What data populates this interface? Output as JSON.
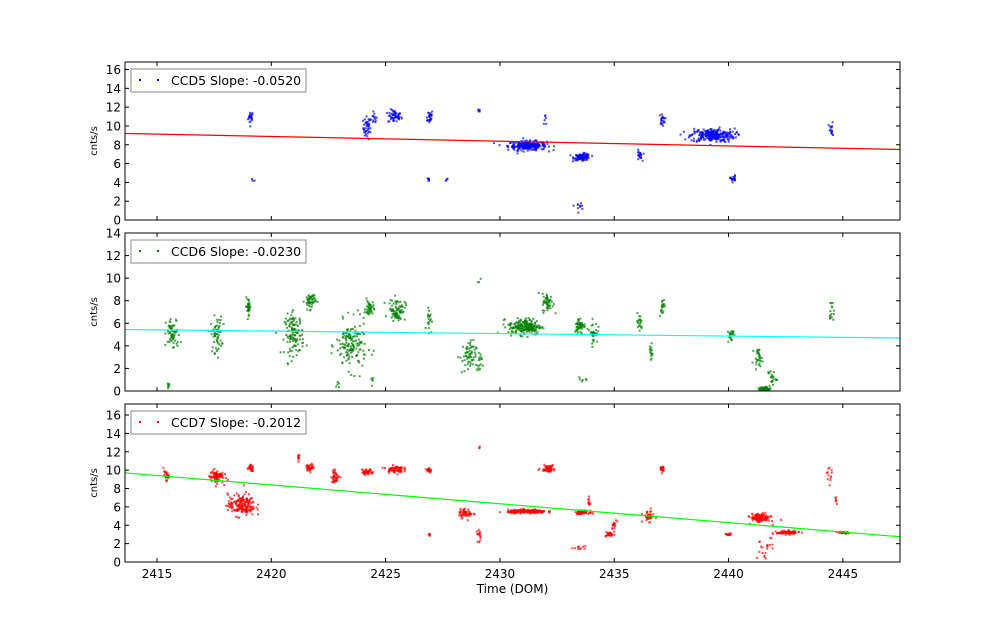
{
  "chart_data": {
    "type": "scatter",
    "xlabel": "Time (DOM)",
    "xlim": [
      2413.6,
      2447.5
    ],
    "xticks": [
      2415,
      2420,
      2425,
      2430,
      2435,
      2440,
      2445
    ],
    "cluster_format": [
      "x_center",
      "y_center",
      "x_spread",
      "y_spread",
      "count"
    ],
    "panels": [
      {
        "name": "CCD5",
        "legend": "CCD5 Slope: -0.0520",
        "ylabel": "cnts/s",
        "ylim": [
          0,
          16.8
        ],
        "yticks": [
          0,
          2,
          4,
          6,
          8,
          10,
          12,
          14,
          16
        ],
        "point_color": "#0000ff",
        "fit_color": "#ff0000",
        "fit": [
          9.2,
          7.5
        ],
        "clusters": [
          [
            2419.1,
            10.9,
            0.1,
            0.6,
            20
          ],
          [
            2419.2,
            4.4,
            0.1,
            0.2,
            3
          ],
          [
            2424.2,
            9.8,
            0.15,
            1,
            40
          ],
          [
            2424.5,
            10.8,
            0.1,
            0.5,
            12
          ],
          [
            2425.4,
            11,
            0.25,
            0.6,
            50
          ],
          [
            2426.9,
            11,
            0.15,
            0.6,
            25
          ],
          [
            2426.9,
            4.3,
            0.1,
            0.2,
            6
          ],
          [
            2427.7,
            4.3,
            0.05,
            0.2,
            4
          ],
          [
            2429.1,
            11.7,
            0.05,
            0.2,
            5
          ],
          [
            2431.2,
            7.9,
            0.7,
            0.4,
            250
          ],
          [
            2432.0,
            10.5,
            0.05,
            0.5,
            6
          ],
          [
            2433.6,
            6.7,
            0.3,
            0.3,
            100
          ],
          [
            2433.5,
            1.5,
            0.2,
            0.3,
            10
          ],
          [
            2436.1,
            6.8,
            0.1,
            0.5,
            20
          ],
          [
            2437.1,
            10.7,
            0.1,
            0.5,
            20
          ],
          [
            2439.3,
            9,
            0.8,
            0.6,
            250
          ],
          [
            2440.2,
            4.4,
            0.1,
            0.3,
            20
          ],
          [
            2444.5,
            9.5,
            0.1,
            0.7,
            15
          ]
        ]
      },
      {
        "name": "CCD6",
        "legend": "CCD6 Slope: -0.0230",
        "ylabel": "cnts/s",
        "ylim": [
          0,
          14
        ],
        "yticks": [
          0,
          2,
          4,
          6,
          8,
          10,
          12,
          14
        ],
        "point_color": "#008000",
        "fit_color": "#00ffff",
        "fit": [
          5.45,
          4.7
        ],
        "clusters": [
          [
            2415.5,
            0.5,
            0.05,
            0.3,
            6
          ],
          [
            2415.7,
            5,
            0.25,
            1.2,
            60
          ],
          [
            2417.6,
            5,
            0.2,
            1.3,
            60
          ],
          [
            2419.0,
            7.5,
            0.1,
            0.6,
            30
          ],
          [
            2421.0,
            5,
            0.35,
            1.5,
            120
          ],
          [
            2421.7,
            8,
            0.2,
            0.6,
            50
          ],
          [
            2422.9,
            0.6,
            0.05,
            0.3,
            5
          ],
          [
            2423.5,
            4,
            0.55,
            1.8,
            150
          ],
          [
            2424.3,
            7.3,
            0.15,
            0.6,
            40
          ],
          [
            2424.4,
            1,
            0.05,
            0.4,
            5
          ],
          [
            2425.5,
            7.2,
            0.3,
            0.8,
            80
          ],
          [
            2426.9,
            6.5,
            0.1,
            1,
            20
          ],
          [
            2428.6,
            3,
            0.3,
            1.2,
            60
          ],
          [
            2429.1,
            2.5,
            0.1,
            1,
            15
          ],
          [
            2429.1,
            9.7,
            0.05,
            0.2,
            3
          ],
          [
            2431.1,
            5.7,
            0.6,
            0.6,
            200
          ],
          [
            2432.1,
            7.8,
            0.2,
            0.7,
            50
          ],
          [
            2433.5,
            5.8,
            0.2,
            0.6,
            50
          ],
          [
            2434.1,
            5.2,
            0.15,
            0.8,
            30
          ],
          [
            2433.6,
            1,
            0.2,
            0.2,
            6
          ],
          [
            2436.1,
            6,
            0.1,
            0.7,
            20
          ],
          [
            2436.6,
            3.5,
            0.1,
            0.8,
            15
          ],
          [
            2437.1,
            7.5,
            0.1,
            0.6,
            20
          ],
          [
            2440.1,
            5,
            0.1,
            0.6,
            20
          ],
          [
            2441.3,
            3,
            0.15,
            0.6,
            30
          ],
          [
            2441.6,
            0.2,
            0.2,
            0.15,
            60
          ],
          [
            2441.9,
            1.2,
            0.15,
            0.6,
            20
          ],
          [
            2444.5,
            7,
            0.1,
            0.8,
            15
          ]
        ]
      },
      {
        "name": "CCD7",
        "legend": "CCD7 Slope: -0.2012",
        "ylabel": "cnts/s",
        "ylim": [
          0,
          17.2
        ],
        "yticks": [
          0,
          2,
          4,
          6,
          8,
          10,
          12,
          14,
          16
        ],
        "point_color": "#ff0000",
        "fit_color": "#00ff00",
        "fit": [
          9.7,
          2.75
        ],
        "clusters": [
          [
            2415.4,
            9.4,
            0.1,
            0.4,
            30
          ],
          [
            2417.6,
            9.3,
            0.25,
            0.6,
            80
          ],
          [
            2418.7,
            6.2,
            0.5,
            1,
            180
          ],
          [
            2419.1,
            10.2,
            0.1,
            0.3,
            25
          ],
          [
            2421.2,
            11.5,
            0.05,
            0.5,
            8
          ],
          [
            2421.7,
            10.3,
            0.15,
            0.3,
            40
          ],
          [
            2422.8,
            9.3,
            0.15,
            0.6,
            40
          ],
          [
            2424.2,
            9.8,
            0.2,
            0.3,
            40
          ],
          [
            2425.4,
            10.1,
            0.3,
            0.3,
            70
          ],
          [
            2426.9,
            10,
            0.1,
            0.3,
            20
          ],
          [
            2426.9,
            3,
            0.05,
            0.2,
            6
          ],
          [
            2428.5,
            5.3,
            0.25,
            0.4,
            50
          ],
          [
            2429.1,
            3,
            0.1,
            0.8,
            15
          ],
          [
            2429.1,
            12.4,
            0.03,
            0.15,
            3
          ],
          [
            2431.2,
            5.5,
            0.7,
            0.15,
            250
          ],
          [
            2432.1,
            10.2,
            0.25,
            0.3,
            60
          ],
          [
            2433.6,
            5.4,
            0.25,
            0.15,
            60
          ],
          [
            2433.5,
            1.5,
            0.2,
            0.2,
            10
          ],
          [
            2433.9,
            6.5,
            0.05,
            0.5,
            10
          ],
          [
            2434.8,
            3,
            0.15,
            0.2,
            25
          ],
          [
            2435,
            4,
            0.1,
            0.5,
            15
          ],
          [
            2436.5,
            5,
            0.2,
            0.5,
            40
          ],
          [
            2437.1,
            10.1,
            0.1,
            0.3,
            20
          ],
          [
            2440.0,
            3,
            0.1,
            0.1,
            15
          ],
          [
            2441.4,
            4.8,
            0.35,
            0.4,
            120
          ],
          [
            2442.6,
            3.2,
            0.4,
            0.15,
            100
          ],
          [
            2444.4,
            9.5,
            0.1,
            0.8,
            12
          ],
          [
            2444.7,
            6.8,
            0.05,
            0.5,
            6
          ],
          [
            2445.0,
            3.2,
            0.2,
            0.1,
            40
          ],
          [
            2441.6,
            1.5,
            0.3,
            1,
            20
          ]
        ]
      }
    ]
  }
}
